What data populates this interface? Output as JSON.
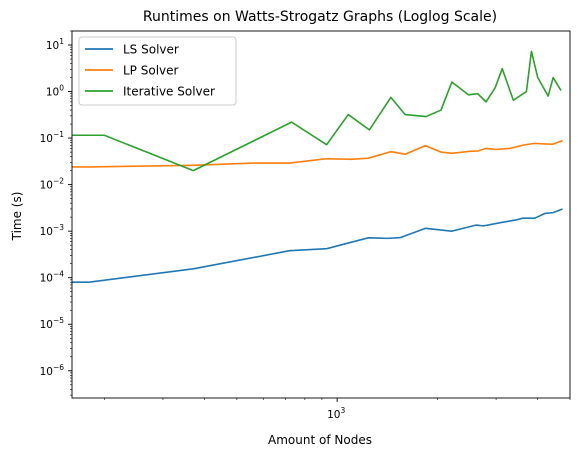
{
  "chart_data": {
    "type": "line",
    "title": "Runtimes on Watts-Strogatz Graphs (Loglog Scale)",
    "xlabel": "Amount of Nodes",
    "ylabel": "Time (s)",
    "xscale": "log",
    "yscale": "log",
    "xlim": [
      160,
      5000
    ],
    "ylim": [
      2.6e-07,
      20
    ],
    "legend": "top-left",
    "grid": false,
    "x_ticks": [
      {
        "value": 1000,
        "base": "10",
        "exp": "3"
      }
    ],
    "y_ticks": [
      {
        "value": 1e-06,
        "base": "10",
        "exp": "−6"
      },
      {
        "value": 1e-05,
        "base": "10",
        "exp": "−5"
      },
      {
        "value": 0.0001,
        "base": "10",
        "exp": "−4"
      },
      {
        "value": 0.001,
        "base": "10",
        "exp": "−3"
      },
      {
        "value": 0.01,
        "base": "10",
        "exp": "−2"
      },
      {
        "value": 0.1,
        "base": "10",
        "exp": "−1"
      },
      {
        "value": 1,
        "base": "10",
        "exp": "0"
      },
      {
        "value": 10,
        "base": "10",
        "exp": "1"
      }
    ],
    "series": [
      {
        "name": "LS Solver",
        "color": "#1f77b4",
        "points": [
          [
            160,
            8e-05
          ],
          [
            180,
            8e-05
          ],
          [
            370,
            0.000155
          ],
          [
            720,
            0.00038
          ],
          [
            930,
            0.00042
          ],
          [
            1240,
            0.00072
          ],
          [
            1420,
            0.0007
          ],
          [
            1550,
            0.00073
          ],
          [
            1840,
            0.00115
          ],
          [
            2210,
            0.001
          ],
          [
            2610,
            0.00135
          ],
          [
            2750,
            0.0013
          ],
          [
            3130,
            0.00155
          ],
          [
            3460,
            0.00175
          ],
          [
            3600,
            0.0019
          ],
          [
            3920,
            0.0019
          ],
          [
            4200,
            0.0024
          ],
          [
            4450,
            0.0025
          ],
          [
            4750,
            0.003
          ]
        ]
      },
      {
        "name": "LP Solver",
        "color": "#ff7f0e",
        "points": [
          [
            160,
            0.024
          ],
          [
            180,
            0.024
          ],
          [
            370,
            0.026
          ],
          [
            560,
            0.029
          ],
          [
            720,
            0.029
          ],
          [
            930,
            0.036
          ],
          [
            1100,
            0.035
          ],
          [
            1240,
            0.037
          ],
          [
            1450,
            0.051
          ],
          [
            1600,
            0.045
          ],
          [
            1840,
            0.069
          ],
          [
            2050,
            0.05
          ],
          [
            2210,
            0.047
          ],
          [
            2500,
            0.052
          ],
          [
            2650,
            0.053
          ],
          [
            2800,
            0.06
          ],
          [
            3000,
            0.057
          ],
          [
            3300,
            0.06
          ],
          [
            3600,
            0.07
          ],
          [
            3900,
            0.077
          ],
          [
            4200,
            0.075
          ],
          [
            4450,
            0.074
          ],
          [
            4750,
            0.088
          ]
        ]
      },
      {
        "name": "Iterative Solver",
        "color": "#2ca02c",
        "points": [
          [
            160,
            0.115
          ],
          [
            200,
            0.115
          ],
          [
            370,
            0.02
          ],
          [
            730,
            0.22
          ],
          [
            930,
            0.072
          ],
          [
            1080,
            0.32
          ],
          [
            1250,
            0.15
          ],
          [
            1450,
            0.75
          ],
          [
            1600,
            0.32
          ],
          [
            1850,
            0.29
          ],
          [
            2050,
            0.4
          ],
          [
            2210,
            1.6
          ],
          [
            2480,
            0.85
          ],
          [
            2640,
            0.9
          ],
          [
            2800,
            0.6
          ],
          [
            2980,
            1.2
          ],
          [
            3130,
            3.1
          ],
          [
            3380,
            0.65
          ],
          [
            3700,
            1.0
          ],
          [
            3830,
            7.3
          ],
          [
            4000,
            2.0
          ],
          [
            4300,
            0.8
          ],
          [
            4450,
            2.0
          ],
          [
            4700,
            1.05
          ]
        ]
      }
    ]
  }
}
